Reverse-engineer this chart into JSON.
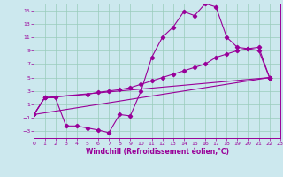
{
  "xlabel": "Windchill (Refroidissement éolien,°C)",
  "bg_color": "#cce8ee",
  "line_color": "#990099",
  "grid_color": "#99ccbb",
  "xmin": 0,
  "xmax": 23,
  "ymin": -4,
  "ymax": 16,
  "yticks": [
    -3,
    -1,
    1,
    3,
    5,
    7,
    9,
    11,
    13,
    15
  ],
  "xticks": [
    0,
    1,
    2,
    3,
    4,
    5,
    6,
    7,
    8,
    9,
    10,
    11,
    12,
    13,
    14,
    15,
    16,
    17,
    18,
    19,
    20,
    21,
    22,
    23
  ],
  "series1_x": [
    0,
    1,
    2,
    3,
    4,
    5,
    6,
    7,
    8,
    9,
    10,
    11,
    12,
    13,
    14,
    15,
    16,
    17,
    18,
    19,
    20,
    21,
    22
  ],
  "series1_y": [
    -0.5,
    2.0,
    2.0,
    -2.2,
    -2.2,
    -2.5,
    -2.8,
    -3.2,
    -0.5,
    -0.7,
    3.0,
    8.0,
    11.0,
    12.5,
    14.8,
    14.2,
    16.0,
    15.5,
    11.0,
    9.5,
    9.3,
    9.0,
    5.0
  ],
  "series2_x": [
    0,
    1,
    22
  ],
  "series2_y": [
    -0.5,
    2.0,
    5.0
  ],
  "series3_x": [
    0,
    22
  ],
  "series3_y": [
    -0.5,
    5.0
  ],
  "series4_x": [
    0,
    1,
    5,
    6,
    7,
    8,
    9,
    10,
    11,
    12,
    13,
    14,
    15,
    16,
    17,
    18,
    19,
    20,
    21,
    22
  ],
  "series4_y": [
    -0.5,
    2.0,
    2.5,
    2.8,
    3.0,
    3.2,
    3.5,
    4.0,
    4.5,
    5.0,
    5.5,
    6.0,
    6.5,
    7.0,
    8.0,
    8.5,
    9.0,
    9.3,
    9.5,
    5.0
  ]
}
